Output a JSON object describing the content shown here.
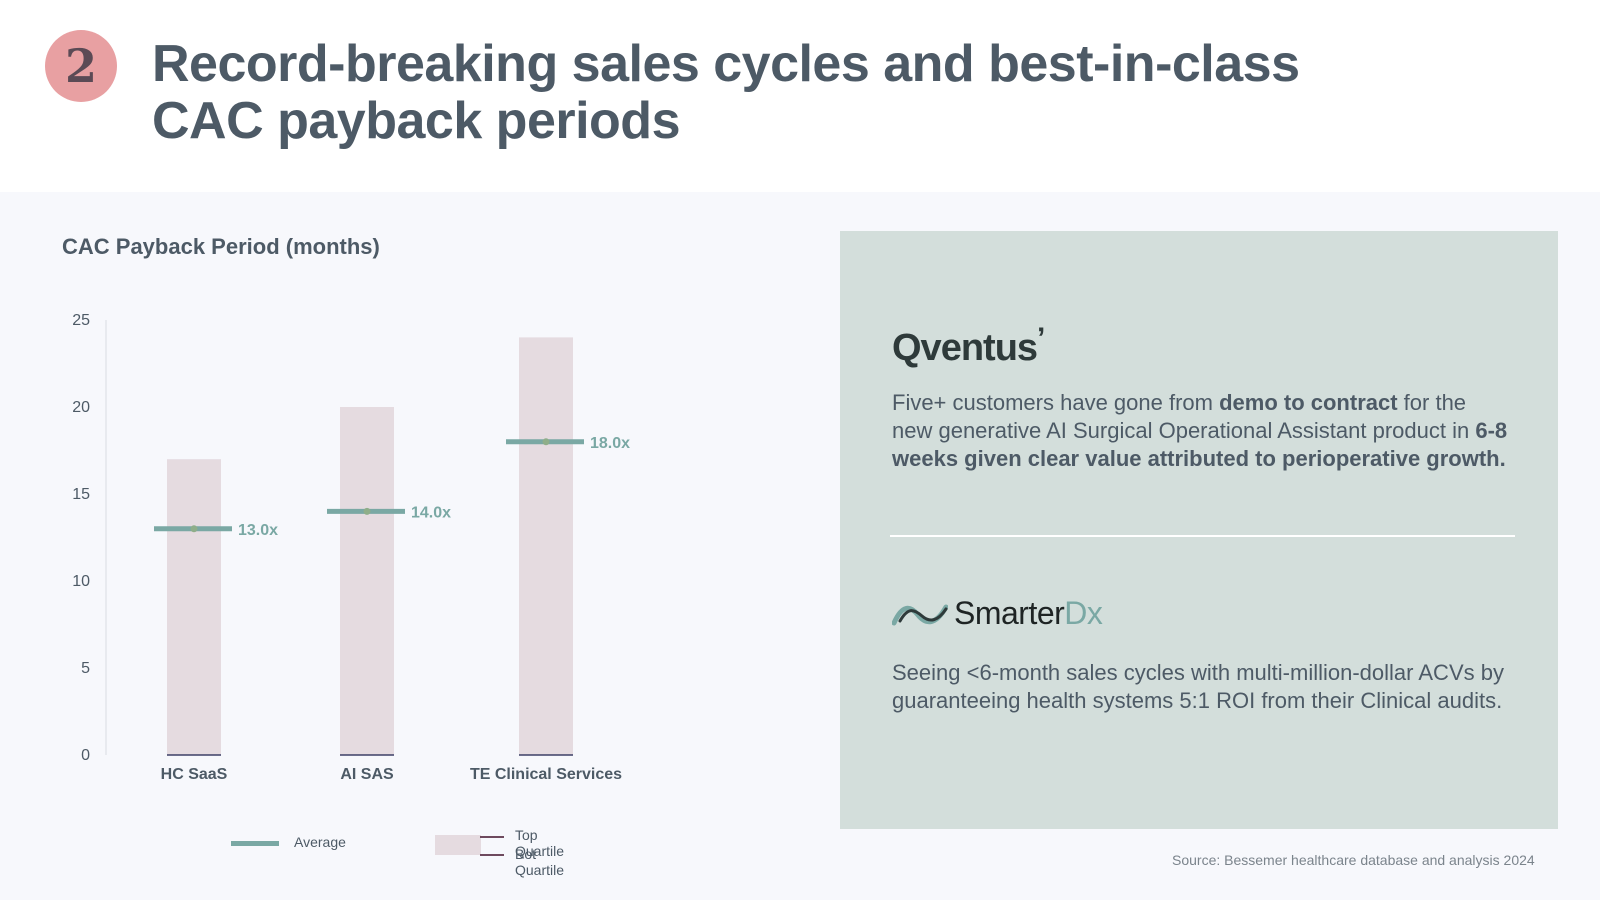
{
  "header": {
    "badge": "2",
    "title_line1": "Record-breaking sales cycles and best-in-class",
    "title_line2": "CAC payback periods"
  },
  "chart_title": "CAC Payback Period (months)",
  "chart_data": {
    "type": "bar",
    "title": "CAC Payback Period (months)",
    "categories": [
      "HC SaaS",
      "AI SAS",
      "TE Clinical Services"
    ],
    "series": [
      {
        "name": "Top Quartile",
        "values": [
          17,
          20,
          24
        ]
      },
      {
        "name": "Bot Quartile",
        "values": [
          0,
          0,
          0
        ]
      },
      {
        "name": "Average",
        "values": [
          13.0,
          14.0,
          18.0
        ]
      }
    ],
    "average_labels": [
      "13.0x",
      "14.0x",
      "18.0x"
    ],
    "yticks": [
      0,
      5,
      10,
      15,
      20,
      25
    ],
    "ylim": [
      0,
      25
    ],
    "xlabel": "",
    "ylabel": "",
    "legend": {
      "position": "bottom",
      "items": [
        "Average",
        "Top Quartile",
        "Bot Quartile"
      ]
    },
    "colors": {
      "bar": "#e5dbe0",
      "average": "#7aa8a4",
      "quartile_line": "#6e4a5e"
    }
  },
  "legend": {
    "average": "Average",
    "top_quartile": "Top Quartile",
    "bot_quartile": "Bot Quartile"
  },
  "panel": {
    "logo1": "Qventus",
    "logo1_mark": "’",
    "text1_a": "Five+ customers have gone from ",
    "text1_b": "demo to contract",
    "text1_c": " for the new generative AI Surgical Operational Assistant product in ",
    "text1_d": "6-8 weeks given clear value attributed to perioperative growth.",
    "logo2_a": "Smarter",
    "logo2_b": "Dx",
    "text2": "Seeing <6-month sales cycles with multi-million-dollar ACVs by  guaranteeing health systems 5:1 ROI from their Clinical audits."
  },
  "source": "Source: Bessemer healthcare database and analysis 2024",
  "colors": {
    "badge": "#e8a0a2",
    "title": "#4d5a66",
    "panel_bg": "#d3dedb",
    "accent_teal": "#7aa8a4"
  }
}
